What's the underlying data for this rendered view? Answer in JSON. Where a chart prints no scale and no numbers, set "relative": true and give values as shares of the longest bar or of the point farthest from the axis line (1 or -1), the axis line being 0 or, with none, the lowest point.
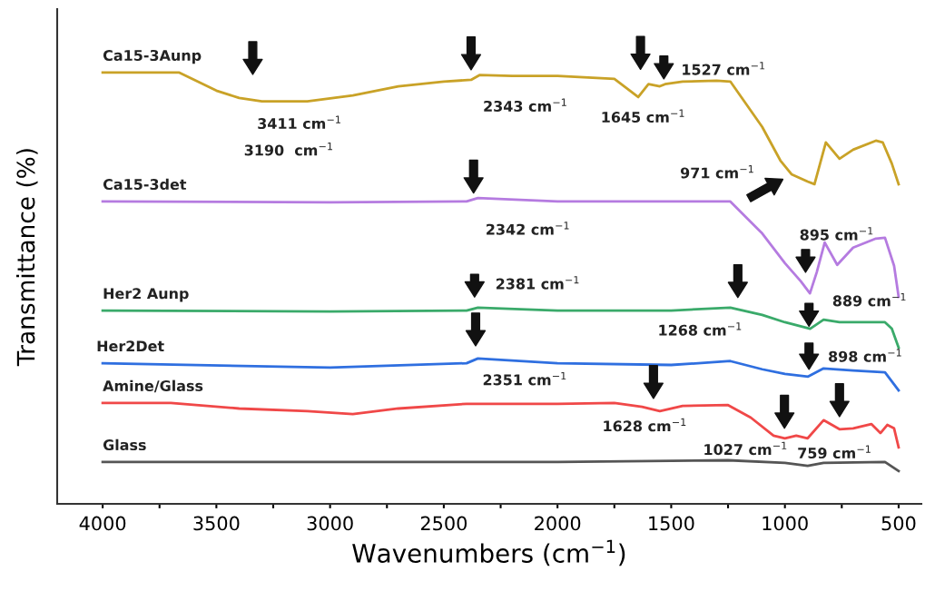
{
  "chart_data": {
    "type": "line",
    "relative": true,
    "xlabel": "Wavenumbers (cm$^{−1}$)",
    "ylabel": "Transmittance (%)",
    "xlim": [
      4200,
      400
    ],
    "xticks": [
      4000,
      {
        "value": 3750,
        "label": null
      },
      3500,
      {
        "value": 3250,
        "label": null
      },
      3000,
      {
        "value": 2750,
        "label": null
      },
      2500,
      {
        "value": 2250,
        "label": null
      },
      2000,
      {
        "value": 1750,
        "label": null
      },
      1500,
      {
        "value": 1250,
        "label": null
      },
      1000,
      {
        "value": 750,
        "label": null
      },
      500
    ],
    "tick_labels": "x",
    "series": [
      {
        "name": "Ca15-3Aunp",
        "color": "#c9a227",
        "x": [
          4000,
          3665,
          3500,
          3400,
          3300,
          3100,
          2900,
          2700,
          2500,
          2380,
          2343,
          2200,
          2000,
          1750,
          1645,
          1600,
          1550,
          1527,
          1450,
          1300,
          1240,
          1100,
          1020,
          971,
          900,
          870,
          820,
          760,
          700,
          600,
          570,
          530,
          500
        ],
        "values": [
          1.0,
          1.0,
          0.958,
          0.941,
          0.933,
          0.933,
          0.947,
          0.968,
          0.979,
          0.983,
          0.994,
          0.992,
          0.992,
          0.985,
          0.943,
          0.973,
          0.968,
          0.973,
          0.979,
          0.981,
          0.979,
          0.874,
          0.796,
          0.764,
          0.747,
          0.741,
          0.838,
          0.8,
          0.821,
          0.842,
          0.838,
          0.789,
          0.741
        ]
      },
      {
        "name": "Ca15-3det",
        "color": "#b57be0",
        "x": [
          4000,
          3000,
          2400,
          2350,
          2000,
          1500,
          1240,
          1100,
          1000,
          930,
          890,
          860,
          825,
          770,
          700,
          600,
          560,
          520,
          500
        ],
        "values": [
          0.701,
          0.699,
          0.701,
          0.709,
          0.701,
          0.701,
          0.701,
          0.627,
          0.558,
          0.516,
          0.488,
          0.537,
          0.606,
          0.554,
          0.594,
          0.615,
          0.617,
          0.552,
          0.48
        ]
      },
      {
        "name": "Her2 Aunp",
        "color": "#3aaa6a",
        "x": [
          4000,
          3000,
          2400,
          2350,
          2000,
          1500,
          1240,
          1100,
          1000,
          889,
          830,
          760,
          600,
          560,
          530,
          500
        ],
        "values": [
          0.448,
          0.446,
          0.448,
          0.455,
          0.448,
          0.448,
          0.455,
          0.438,
          0.421,
          0.406,
          0.427,
          0.421,
          0.421,
          0.421,
          0.406,
          0.362
        ]
      },
      {
        "name": "Her2Det",
        "color": "#2f6fe0",
        "x": [
          4000,
          3000,
          2400,
          2350,
          2000,
          1500,
          1240,
          1100,
          1000,
          898,
          830,
          700,
          560,
          500
        ],
        "values": [
          0.326,
          0.316,
          0.326,
          0.337,
          0.326,
          0.322,
          0.331,
          0.312,
          0.301,
          0.295,
          0.314,
          0.309,
          0.305,
          0.263
        ]
      },
      {
        "name": "Amine/Glass",
        "color": "#f04848",
        "x": [
          4000,
          3700,
          3400,
          3100,
          2900,
          2700,
          2400,
          2000,
          1750,
          1628,
          1550,
          1450,
          1250,
          1150,
          1050,
          1000,
          950,
          900,
          830,
          760,
          700,
          620,
          580,
          550,
          520,
          500
        ],
        "values": [
          0.234,
          0.234,
          0.221,
          0.215,
          0.208,
          0.221,
          0.232,
          0.232,
          0.234,
          0.225,
          0.215,
          0.227,
          0.229,
          0.2,
          0.158,
          0.152,
          0.158,
          0.152,
          0.194,
          0.173,
          0.175,
          0.185,
          0.164,
          0.183,
          0.175,
          0.131
        ]
      },
      {
        "name": "Glass",
        "color": "#555555",
        "x": [
          4000,
          2000,
          1250,
          1000,
          900,
          830,
          560,
          500
        ],
        "values": [
          0.097,
          0.097,
          0.101,
          0.095,
          0.088,
          0.095,
          0.097,
          0.076
        ]
      }
    ],
    "annotations": [
      {
        "text": "3411 cm$^{−1}$",
        "x": 3340,
        "y": 0.937
      },
      "3190  cm$^{−1}$",
      {
        "text": "2343 cm$^{−1}$",
        "x": 2380,
        "y": 0.983
      },
      {
        "text": "1645 cm$^{−1}$",
        "x": 1635,
        "y": 0.943
      },
      "1527 cm$^{−1}$",
      {
        "text": "971 cm$^{−1}$",
        "x": 987,
        "y": 0.764
      },
      {
        "text": "2342 cm$^{−1}$",
        "x": 2369,
        "y": 0.709
      },
      "895 cm$^{−1}$",
      "2381 cm$^{−1}$",
      {
        "text": "1268 cm$^{−1}$",
        "x": 1207,
        "y": 0.455
      },
      {
        "text": "889 cm$^{−1}$",
        "x": 894,
        "y": 0.406
      },
      {
        "text": "2351 cm$^{−1}$",
        "x": 2360,
        "y": 0.337
      },
      "898 cm$^{−1}$",
      {
        "text": "1628 cm$^{−1}$",
        "x": 1578,
        "y": 0.221
      },
      {
        "text": "1027 cm$^{−1}$",
        "x": 1002,
        "y": 0.152
      },
      {
        "text": "759 cm$^{−1}$",
        "x": 760,
        "y": 0.173
      }
    ]
  }
}
